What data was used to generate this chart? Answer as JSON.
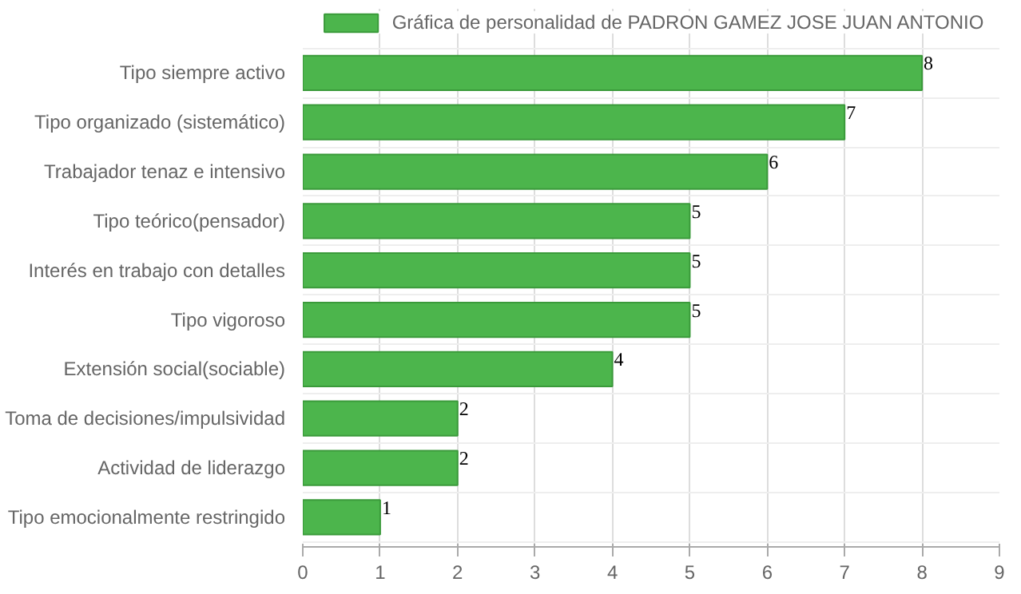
{
  "chart_data": {
    "type": "bar",
    "orientation": "horizontal",
    "categories": [
      "Tipo siempre activo",
      "Tipo organizado (sistemático)",
      "Trabajador tenaz e intensivo",
      "Tipo teórico(pensador)",
      "Interés en trabajo con detalles",
      "Tipo vigoroso",
      "Extensión social(sociable)",
      "Toma de decisiones/impulsividad",
      "Actividad de liderazgo",
      "Tipo emocionalmente restringido"
    ],
    "series": [
      {
        "name": "Gráfica de personalidad de PADRON GAMEZ JOSE JUAN ANTONIO",
        "color": "#4cb54c",
        "values": [
          8,
          7,
          6,
          5,
          5,
          5,
          4,
          2,
          2,
          1
        ]
      }
    ],
    "xlim": [
      0,
      9
    ],
    "xticks": [
      0,
      1,
      2,
      3,
      4,
      5,
      6,
      7,
      8,
      9
    ],
    "grid": true,
    "legend": "top",
    "data_labels": true
  }
}
